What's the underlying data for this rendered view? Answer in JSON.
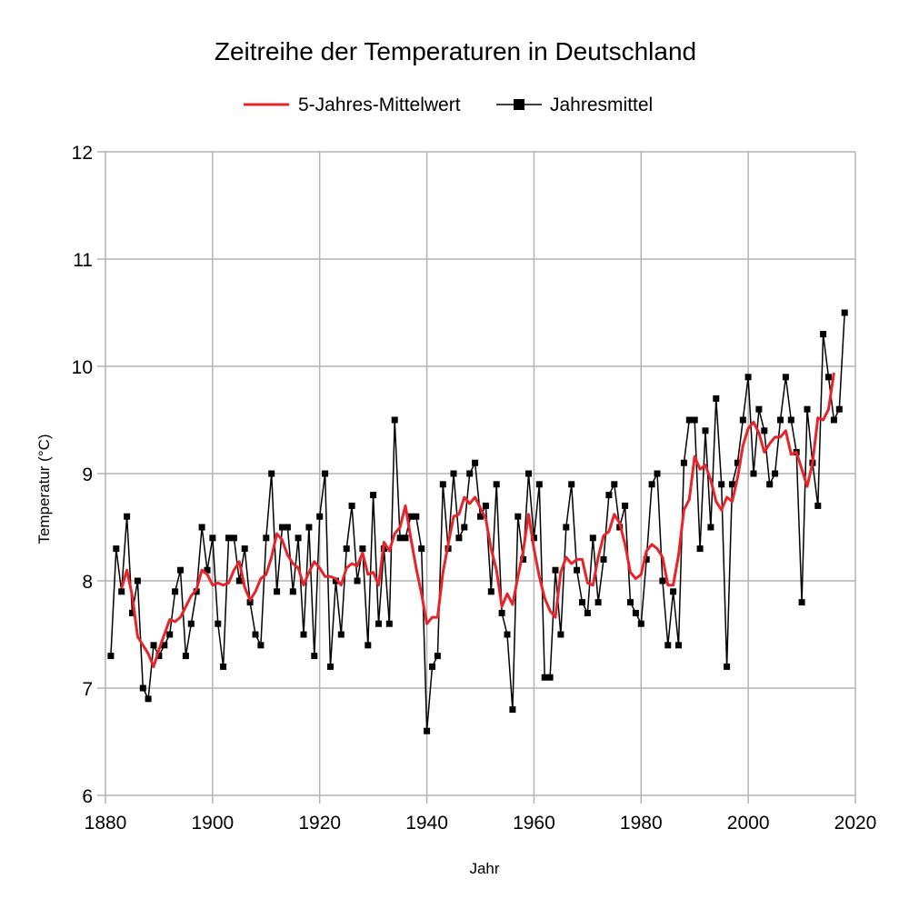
{
  "chart_data": {
    "type": "line",
    "title": "Zeitreihe der Temperaturen in Deutschland",
    "xlabel": "Jahr",
    "ylabel": "Temperatur (°C)",
    "xlim": [
      1880,
      2020
    ],
    "ylim": [
      6,
      12
    ],
    "xticks": [
      "1880",
      "1900",
      "1920",
      "1940",
      "1960",
      "1980",
      "2000",
      "2020"
    ],
    "yticks": [
      "6",
      "7",
      "8",
      "9",
      "10",
      "11",
      "12"
    ],
    "grid": true,
    "legend_position": "top",
    "series": [
      {
        "name": "5-Jahres-Mittelwert",
        "color": "#e8232a",
        "marker": "none",
        "x": [
          1883,
          1884,
          1885,
          1886,
          1887,
          1888,
          1889,
          1890,
          1891,
          1892,
          1893,
          1894,
          1895,
          1896,
          1897,
          1898,
          1899,
          1900,
          1901,
          1902,
          1903,
          1904,
          1905,
          1906,
          1907,
          1908,
          1909,
          1910,
          1911,
          1912,
          1913,
          1914,
          1915,
          1916,
          1917,
          1918,
          1919,
          1920,
          1921,
          1922,
          1923,
          1924,
          1925,
          1926,
          1927,
          1928,
          1929,
          1930,
          1931,
          1932,
          1933,
          1934,
          1935,
          1936,
          1937,
          1938,
          1939,
          1940,
          1941,
          1942,
          1943,
          1944,
          1945,
          1946,
          1947,
          1948,
          1949,
          1950,
          1951,
          1952,
          1953,
          1954,
          1955,
          1956,
          1957,
          1958,
          1959,
          1960,
          1961,
          1962,
          1963,
          1964,
          1965,
          1966,
          1967,
          1968,
          1969,
          1970,
          1971,
          1972,
          1973,
          1974,
          1975,
          1976,
          1977,
          1978,
          1979,
          1980,
          1981,
          1982,
          1983,
          1984,
          1985,
          1986,
          1987,
          1988,
          1989,
          1990,
          1991,
          1992,
          1993,
          1994,
          1995,
          1996,
          1997,
          1998,
          1999,
          2000,
          2001,
          2002,
          2003,
          2004,
          2005,
          2006,
          2007,
          2008,
          2009,
          2010,
          2011,
          2012,
          2013,
          2014,
          2015,
          2016
        ],
        "y": [
          7.93,
          8.1,
          7.86,
          7.48,
          7.4,
          7.32,
          7.2,
          7.36,
          7.5,
          7.64,
          7.62,
          7.66,
          7.76,
          7.86,
          7.92,
          8.1,
          8.06,
          7.96,
          7.98,
          7.96,
          7.98,
          8.1,
          8.18,
          7.94,
          7.82,
          7.9,
          8.02,
          8.06,
          8.22,
          8.44,
          8.38,
          8.24,
          8.16,
          8.12,
          7.96,
          8.08,
          8.18,
          8.12,
          8.04,
          8.04,
          8.02,
          7.96,
          8.12,
          8.16,
          8.14,
          8.26,
          8.06,
          8.08,
          7.96,
          8.36,
          8.28,
          8.44,
          8.5,
          8.7,
          8.4,
          8.12,
          7.88,
          7.6,
          7.66,
          7.66,
          8.08,
          8.34,
          8.6,
          8.62,
          8.78,
          8.72,
          8.78,
          8.68,
          8.58,
          8.3,
          8.1,
          7.76,
          7.88,
          7.78,
          8.04,
          8.28,
          8.62,
          8.3,
          8.04,
          7.84,
          7.72,
          7.66,
          8.08,
          8.22,
          8.16,
          8.2,
          8.2,
          7.98,
          7.96,
          8.22,
          8.42,
          8.46,
          8.62,
          8.54,
          8.34,
          8.08,
          8.02,
          8.06,
          8.28,
          8.34,
          8.3,
          8.22,
          7.96,
          7.96,
          8.24,
          8.66,
          8.76,
          9.16,
          9.04,
          9.08,
          8.94,
          8.74,
          8.66,
          8.78,
          8.74,
          8.96,
          9.26,
          9.42,
          9.48,
          9.38,
          9.2,
          9.28,
          9.34,
          9.34,
          9.4,
          9.18,
          9.2,
          9.04,
          8.88,
          9.1,
          9.52,
          9.5,
          9.6,
          9.94
        ]
      },
      {
        "name": "Jahresmittel",
        "color": "#000000",
        "marker": "square",
        "x": [
          1881,
          1882,
          1883,
          1884,
          1885,
          1886,
          1887,
          1888,
          1889,
          1890,
          1891,
          1892,
          1893,
          1894,
          1895,
          1896,
          1897,
          1898,
          1899,
          1900,
          1901,
          1902,
          1903,
          1904,
          1905,
          1906,
          1907,
          1908,
          1909,
          1910,
          1911,
          1912,
          1913,
          1914,
          1915,
          1916,
          1917,
          1918,
          1919,
          1920,
          1921,
          1922,
          1923,
          1924,
          1925,
          1926,
          1927,
          1928,
          1929,
          1930,
          1931,
          1932,
          1933,
          1934,
          1935,
          1936,
          1937,
          1938,
          1939,
          1940,
          1941,
          1942,
          1943,
          1944,
          1945,
          1946,
          1947,
          1948,
          1949,
          1950,
          1951,
          1952,
          1953,
          1954,
          1955,
          1956,
          1957,
          1958,
          1959,
          1960,
          1961,
          1962,
          1963,
          1964,
          1965,
          1966,
          1967,
          1968,
          1969,
          1970,
          1971,
          1972,
          1973,
          1974,
          1975,
          1976,
          1977,
          1978,
          1979,
          1980,
          1981,
          1982,
          1983,
          1984,
          1985,
          1986,
          1987,
          1988,
          1989,
          1990,
          1991,
          1992,
          1993,
          1994,
          1995,
          1996,
          1997,
          1998,
          1999,
          2000,
          2001,
          2002,
          2003,
          2004,
          2005,
          2006,
          2007,
          2008,
          2009,
          2010,
          2011,
          2012,
          2013,
          2014,
          2015,
          2016,
          2017,
          2018
        ],
        "y": [
          7.3,
          8.3,
          7.9,
          8.6,
          7.7,
          8.0,
          7.0,
          6.9,
          7.4,
          7.3,
          7.4,
          7.5,
          7.9,
          8.1,
          7.3,
          7.6,
          7.9,
          8.5,
          8.1,
          8.4,
          7.6,
          7.2,
          8.4,
          8.4,
          8.0,
          8.3,
          7.8,
          7.5,
          7.4,
          8.4,
          9.0,
          7.9,
          8.5,
          8.5,
          7.9,
          8.4,
          7.5,
          8.5,
          7.3,
          8.6,
          9.0,
          7.2,
          8.0,
          7.5,
          8.3,
          8.7,
          8.0,
          8.3,
          7.4,
          8.8,
          7.6,
          8.3,
          7.6,
          9.5,
          8.4,
          8.4,
          8.6,
          8.6,
          8.3,
          6.6,
          7.2,
          7.3,
          8.9,
          8.3,
          9.0,
          8.4,
          8.5,
          9.0,
          9.1,
          8.6,
          8.7,
          7.9,
          8.9,
          7.7,
          7.5,
          6.8,
          8.6,
          8.2,
          9.0,
          8.4,
          8.9,
          7.1,
          7.1,
          8.1,
          7.5,
          8.5,
          8.9,
          8.1,
          7.8,
          7.7,
          8.4,
          7.8,
          8.2,
          8.8,
          8.9,
          8.5,
          8.7,
          7.8,
          7.7,
          7.6,
          8.2,
          8.9,
          9.0,
          8.0,
          7.4,
          7.9,
          7.4,
          9.1,
          9.5,
          9.5,
          8.3,
          9.4,
          8.5,
          9.7,
          8.9,
          7.2,
          8.9,
          9.1,
          9.5,
          9.9,
          9.0,
          9.6,
          9.4,
          8.9,
          9.0,
          9.5,
          9.9,
          9.5,
          9.2,
          7.8,
          9.6,
          9.1,
          8.7,
          10.3,
          9.9,
          9.5,
          9.6,
          10.5
        ]
      }
    ]
  }
}
